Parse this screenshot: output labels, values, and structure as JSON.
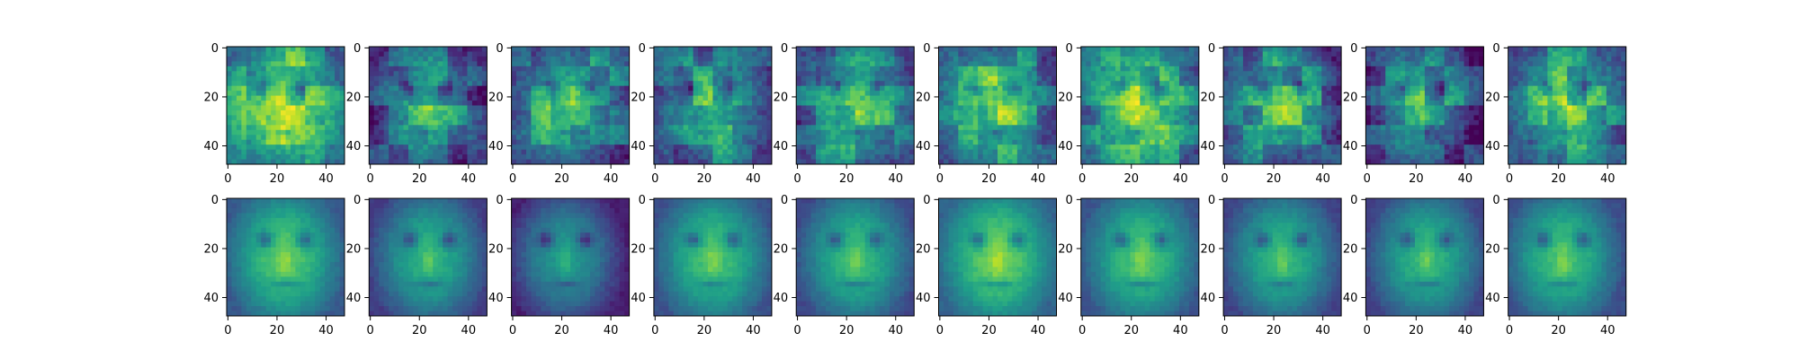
{
  "figure": {
    "rows": 2,
    "cols": 10,
    "colormap": "viridis",
    "colormap_stops": [
      "#440154",
      "#482878",
      "#3e4989",
      "#31688e",
      "#26828e",
      "#1f9e89",
      "#35b779",
      "#6ece58",
      "#b5de2b",
      "#fde725"
    ]
  },
  "chart_data": [
    {
      "type": "heatmap",
      "row": 1,
      "col": 1,
      "image_size": [
        48,
        48
      ],
      "xlim": [
        0,
        47
      ],
      "ylim": [
        47,
        0
      ],
      "xticks": [
        0,
        20,
        40
      ],
      "yticks": [
        0,
        20,
        40
      ],
      "xticklabels": [
        "0",
        "20",
        "40"
      ],
      "yticklabels": [
        "0",
        "20",
        "40"
      ],
      "mean_intensity": 0.68
    },
    {
      "type": "heatmap",
      "row": 1,
      "col": 2,
      "image_size": [
        48,
        48
      ],
      "xlim": [
        0,
        47
      ],
      "ylim": [
        47,
        0
      ],
      "xticks": [
        0,
        20,
        40
      ],
      "yticks": [
        0,
        20,
        40
      ],
      "xticklabels": [
        "0",
        "20",
        "40"
      ],
      "yticklabels": [
        "0",
        "20",
        "40"
      ],
      "mean_intensity": 0.42
    },
    {
      "type": "heatmap",
      "row": 1,
      "col": 3,
      "image_size": [
        48,
        48
      ],
      "xlim": [
        0,
        47
      ],
      "ylim": [
        47,
        0
      ],
      "xticks": [
        0,
        20,
        40
      ],
      "yticks": [
        0,
        20,
        40
      ],
      "xticklabels": [
        "0",
        "20",
        "40"
      ],
      "yticklabels": [
        "0",
        "20",
        "40"
      ],
      "mean_intensity": 0.55
    },
    {
      "type": "heatmap",
      "row": 1,
      "col": 4,
      "image_size": [
        48,
        48
      ],
      "xlim": [
        0,
        47
      ],
      "ylim": [
        47,
        0
      ],
      "xticks": [
        0,
        20,
        40
      ],
      "yticks": [
        0,
        20,
        40
      ],
      "xticklabels": [
        "0",
        "20",
        "40"
      ],
      "yticklabels": [
        "0",
        "20",
        "40"
      ],
      "mean_intensity": 0.5
    },
    {
      "type": "heatmap",
      "row": 1,
      "col": 5,
      "image_size": [
        48,
        48
      ],
      "xlim": [
        0,
        47
      ],
      "ylim": [
        47,
        0
      ],
      "xticks": [
        0,
        20,
        40
      ],
      "yticks": [
        0,
        20,
        40
      ],
      "xticklabels": [
        "0",
        "20",
        "40"
      ],
      "yticklabels": [
        "0",
        "20",
        "40"
      ],
      "mean_intensity": 0.55
    },
    {
      "type": "heatmap",
      "row": 1,
      "col": 6,
      "image_size": [
        48,
        48
      ],
      "xlim": [
        0,
        47
      ],
      "ylim": [
        47,
        0
      ],
      "xticks": [
        0,
        20,
        40
      ],
      "yticks": [
        0,
        20,
        40
      ],
      "xticklabels": [
        "0",
        "20",
        "40"
      ],
      "yticklabels": [
        "0",
        "20",
        "40"
      ],
      "mean_intensity": 0.6
    },
    {
      "type": "heatmap",
      "row": 1,
      "col": 7,
      "image_size": [
        48,
        48
      ],
      "xlim": [
        0,
        47
      ],
      "ylim": [
        47,
        0
      ],
      "xticks": [
        0,
        20,
        40
      ],
      "yticks": [
        0,
        20,
        40
      ],
      "xticklabels": [
        "0",
        "20",
        "40"
      ],
      "yticklabels": [
        "0",
        "20",
        "40"
      ],
      "mean_intensity": 0.62
    },
    {
      "type": "heatmap",
      "row": 1,
      "col": 8,
      "image_size": [
        48,
        48
      ],
      "xlim": [
        0,
        47
      ],
      "ylim": [
        47,
        0
      ],
      "xticks": [
        0,
        20,
        40
      ],
      "yticks": [
        0,
        20,
        40
      ],
      "xticklabels": [
        "0",
        "20",
        "40"
      ],
      "yticklabels": [
        "0",
        "20",
        "40"
      ],
      "mean_intensity": 0.5
    },
    {
      "type": "heatmap",
      "row": 1,
      "col": 9,
      "image_size": [
        48,
        48
      ],
      "xlim": [
        0,
        47
      ],
      "ylim": [
        47,
        0
      ],
      "xticks": [
        0,
        20,
        40
      ],
      "yticks": [
        0,
        20,
        40
      ],
      "xticklabels": [
        "0",
        "20",
        "40"
      ],
      "yticklabels": [
        "0",
        "20",
        "40"
      ],
      "mean_intensity": 0.42
    },
    {
      "type": "heatmap",
      "row": 1,
      "col": 10,
      "image_size": [
        48,
        48
      ],
      "xlim": [
        0,
        47
      ],
      "ylim": [
        47,
        0
      ],
      "xticks": [
        0,
        20,
        40
      ],
      "yticks": [
        0,
        20,
        40
      ],
      "xticklabels": [
        "0",
        "20",
        "40"
      ],
      "yticklabels": [
        "0",
        "20",
        "40"
      ],
      "mean_intensity": 0.58
    },
    {
      "type": "heatmap",
      "row": 2,
      "col": 1,
      "image_size": [
        48,
        48
      ],
      "xlim": [
        0,
        47
      ],
      "ylim": [
        47,
        0
      ],
      "xticks": [
        0,
        20,
        40
      ],
      "yticks": [
        0,
        20,
        40
      ],
      "xticklabels": [
        "0",
        "20",
        "40"
      ],
      "yticklabels": [
        "0",
        "20",
        "40"
      ],
      "mean_intensity": 0.58
    },
    {
      "type": "heatmap",
      "row": 2,
      "col": 2,
      "image_size": [
        48,
        48
      ],
      "xlim": [
        0,
        47
      ],
      "ylim": [
        47,
        0
      ],
      "xticks": [
        0,
        20,
        40
      ],
      "yticks": [
        0,
        20,
        40
      ],
      "xticklabels": [
        "0",
        "20",
        "40"
      ],
      "yticklabels": [
        "0",
        "20",
        "40"
      ],
      "mean_intensity": 0.48
    },
    {
      "type": "heatmap",
      "row": 2,
      "col": 3,
      "image_size": [
        48,
        48
      ],
      "xlim": [
        0,
        47
      ],
      "ylim": [
        47,
        0
      ],
      "xticks": [
        0,
        20,
        40
      ],
      "yticks": [
        0,
        20,
        40
      ],
      "xticklabels": [
        "0",
        "20",
        "40"
      ],
      "yticklabels": [
        "0",
        "20",
        "40"
      ],
      "mean_intensity": 0.38
    },
    {
      "type": "heatmap",
      "row": 2,
      "col": 4,
      "image_size": [
        48,
        48
      ],
      "xlim": [
        0,
        47
      ],
      "ylim": [
        47,
        0
      ],
      "xticks": [
        0,
        20,
        40
      ],
      "yticks": [
        0,
        20,
        40
      ],
      "xticklabels": [
        "0",
        "20",
        "40"
      ],
      "yticklabels": [
        "0",
        "20",
        "40"
      ],
      "mean_intensity": 0.55
    },
    {
      "type": "heatmap",
      "row": 2,
      "col": 5,
      "image_size": [
        48,
        48
      ],
      "xlim": [
        0,
        47
      ],
      "ylim": [
        47,
        0
      ],
      "xticks": [
        0,
        20,
        40
      ],
      "yticks": [
        0,
        20,
        40
      ],
      "xticklabels": [
        "0",
        "20",
        "40"
      ],
      "yticklabels": [
        "0",
        "20",
        "40"
      ],
      "mean_intensity": 0.52
    },
    {
      "type": "heatmap",
      "row": 2,
      "col": 6,
      "image_size": [
        48,
        48
      ],
      "xlim": [
        0,
        47
      ],
      "ylim": [
        47,
        0
      ],
      "xticks": [
        0,
        20,
        40
      ],
      "yticks": [
        0,
        20,
        40
      ],
      "xticklabels": [
        "0",
        "20",
        "40"
      ],
      "yticklabels": [
        "0",
        "20",
        "40"
      ],
      "mean_intensity": 0.62
    },
    {
      "type": "heatmap",
      "row": 2,
      "col": 7,
      "image_size": [
        48,
        48
      ],
      "xlim": [
        0,
        47
      ],
      "ylim": [
        47,
        0
      ],
      "xticks": [
        0,
        20,
        40
      ],
      "yticks": [
        0,
        20,
        40
      ],
      "xticklabels": [
        "0",
        "20",
        "40"
      ],
      "yticklabels": [
        "0",
        "20",
        "40"
      ],
      "mean_intensity": 0.56
    },
    {
      "type": "heatmap",
      "row": 2,
      "col": 8,
      "image_size": [
        48,
        48
      ],
      "xlim": [
        0,
        47
      ],
      "ylim": [
        47,
        0
      ],
      "xticks": [
        0,
        20,
        40
      ],
      "yticks": [
        0,
        20,
        40
      ],
      "xticklabels": [
        "0",
        "20",
        "40"
      ],
      "yticklabels": [
        "0",
        "20",
        "40"
      ],
      "mean_intensity": 0.5
    },
    {
      "type": "heatmap",
      "row": 2,
      "col": 9,
      "image_size": [
        48,
        48
      ],
      "xlim": [
        0,
        47
      ],
      "ylim": [
        47,
        0
      ],
      "xticks": [
        0,
        20,
        40
      ],
      "yticks": [
        0,
        20,
        40
      ],
      "xticklabels": [
        "0",
        "20",
        "40"
      ],
      "yticklabels": [
        "0",
        "20",
        "40"
      ],
      "mean_intensity": 0.5
    },
    {
      "type": "heatmap",
      "row": 2,
      "col": 10,
      "image_size": [
        48,
        48
      ],
      "xlim": [
        0,
        47
      ],
      "ylim": [
        47,
        0
      ],
      "xticks": [
        0,
        20,
        40
      ],
      "yticks": [
        0,
        20,
        40
      ],
      "xticklabels": [
        "0",
        "20",
        "40"
      ],
      "yticklabels": [
        "0",
        "20",
        "40"
      ],
      "mean_intensity": 0.54
    }
  ]
}
